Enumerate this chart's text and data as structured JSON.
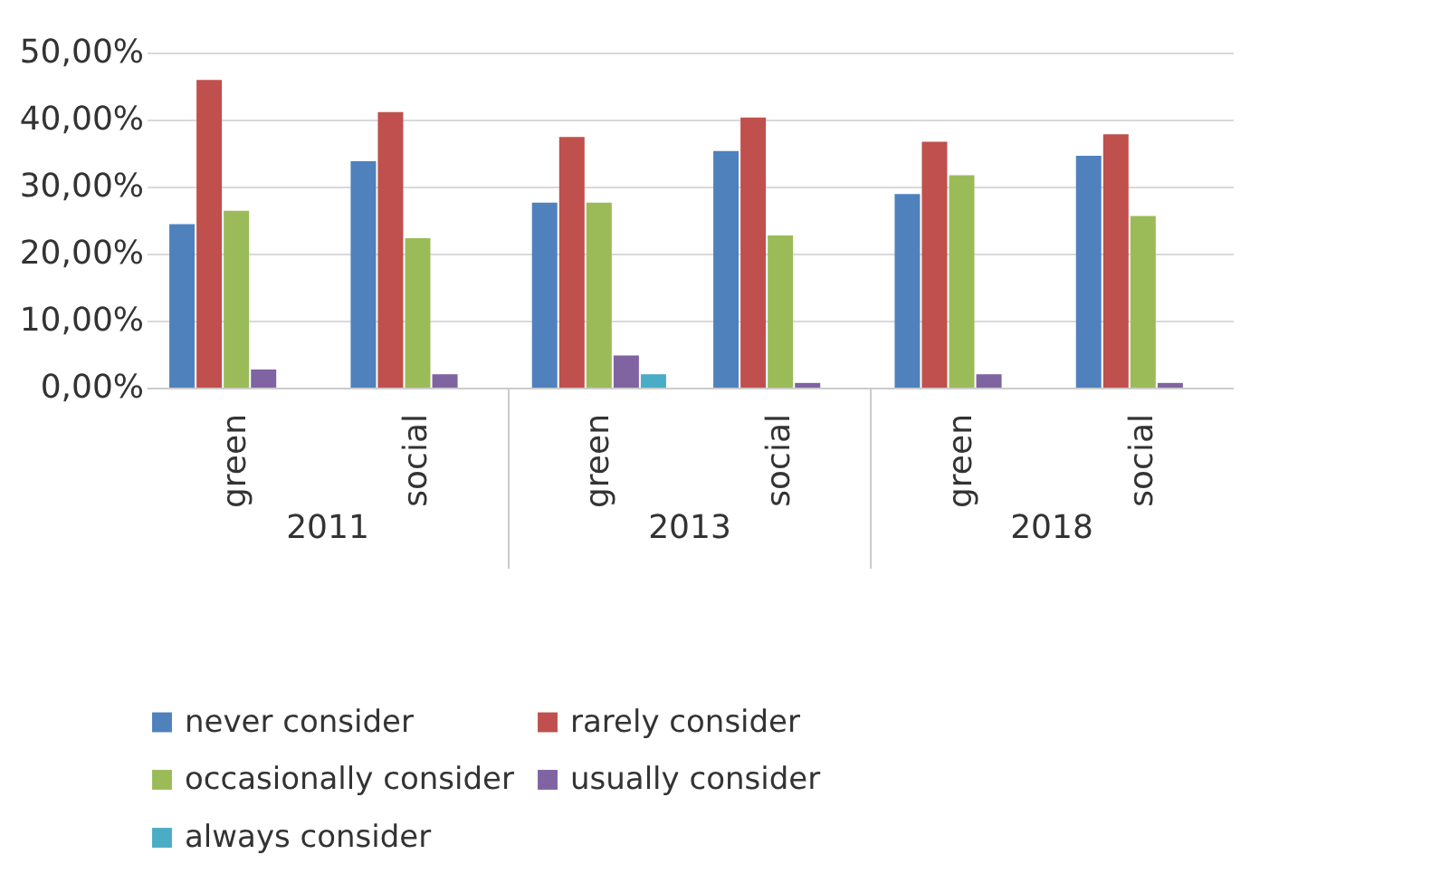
{
  "chart_data": {
    "type": "bar",
    "categories": [
      "green",
      "social",
      "green",
      "social",
      "green",
      "social"
    ],
    "annotations": [
      "2011",
      "2013",
      "2018"
    ],
    "series": [
      {
        "name": "never consider",
        "color": "#4f81bd",
        "values": [
          24.4,
          33.8,
          27.6,
          35.3,
          28.9,
          34.6
        ]
      },
      {
        "name": "rarely consider",
        "color": "#c0504d",
        "values": [
          45.9,
          41.1,
          37.4,
          40.3,
          36.7,
          37.8
        ]
      },
      {
        "name": "occasionally consider",
        "color": "#9bbb59",
        "values": [
          26.4,
          22.3,
          27.6,
          22.7,
          31.7,
          25.6
        ]
      },
      {
        "name": "usually consider",
        "color": "#8064a2",
        "values": [
          2.7,
          2.0,
          4.8,
          0.7,
          2.0,
          0.7
        ]
      },
      {
        "name": "always consider",
        "color": "#4bacc6",
        "values": [
          0,
          0,
          2.0,
          0,
          0,
          0
        ]
      }
    ],
    "ylim": [
      0,
      50
    ],
    "yticks": [
      {
        "value": 0,
        "label": "0,00%"
      },
      {
        "value": 10,
        "label": "10,00%"
      },
      {
        "value": 20,
        "label": "20,00%"
      },
      {
        "value": 30,
        "label": "30,00%"
      },
      {
        "value": 40,
        "label": "40,00%"
      },
      {
        "value": 50,
        "label": "50,00%"
      }
    ],
    "grid": "y",
    "legend": "bottom"
  }
}
